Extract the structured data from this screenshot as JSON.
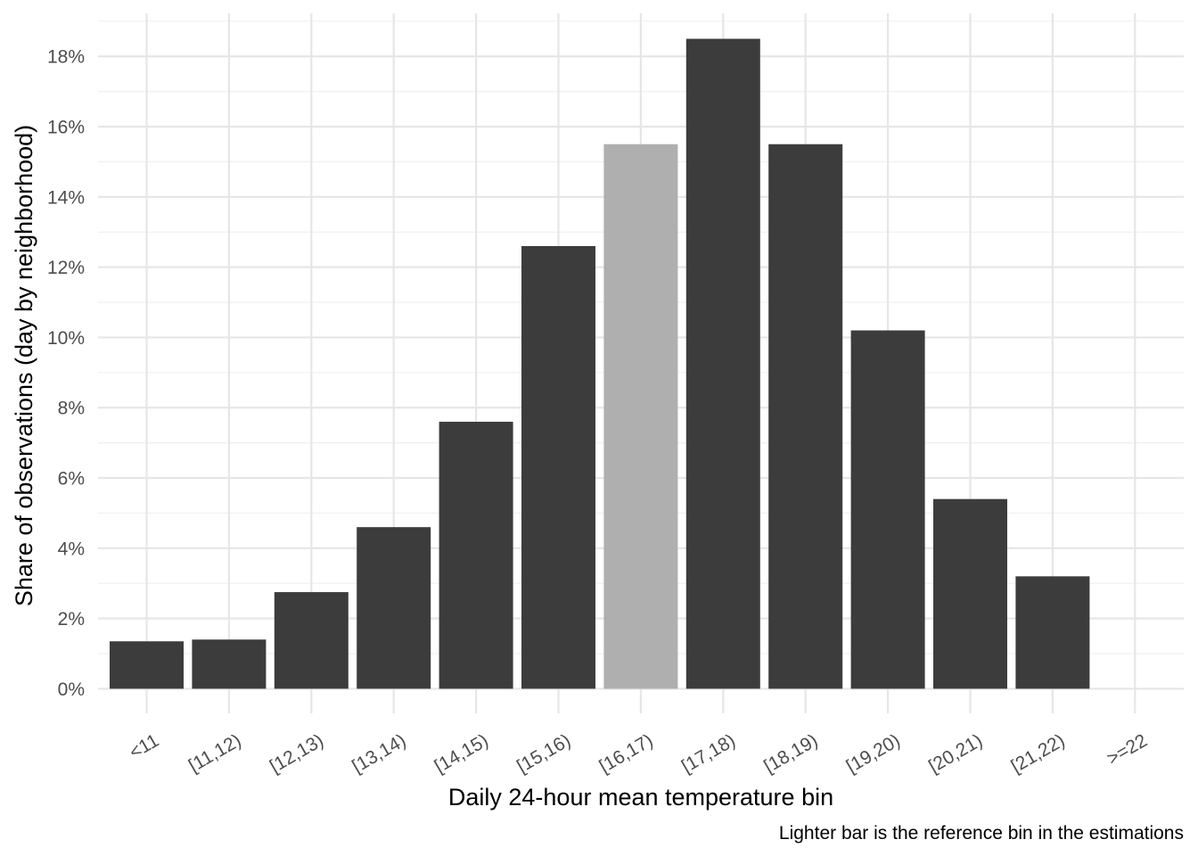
{
  "chart_data": {
    "type": "bar",
    "title": "",
    "xlabel": "Daily 24-hour mean temperature bin",
    "ylabel": "Share of observations (day by neighborhood)",
    "caption": "Lighter bar is the reference bin in the estimations",
    "categories": [
      "<11",
      "[11,12)",
      "[12,13)",
      "[13,14)",
      "[14,15)",
      "[15,16)",
      "[16,17)",
      "[17,18)",
      "[18,19)",
      "[19,20)",
      "[20,21)",
      "[21,22)",
      ">=22"
    ],
    "values": [
      1.35,
      1.4,
      2.75,
      4.6,
      7.6,
      12.6,
      15.5,
      18.5,
      15.5,
      10.2,
      5.4,
      3.2,
      0
    ],
    "reference_category": "[16,17)",
    "ylim": [
      -0.7,
      19.3
    ],
    "yticks": [
      0,
      2,
      4,
      6,
      8,
      10,
      12,
      14,
      16,
      18
    ],
    "ytick_labels": [
      "0%",
      "2%",
      "4%",
      "6%",
      "8%",
      "10%",
      "12%",
      "14%",
      "16%",
      "18%"
    ],
    "grid": true,
    "legend": "none",
    "colors": {
      "bar": "#3c3c3c",
      "reference_bar": "#afafaf"
    }
  }
}
